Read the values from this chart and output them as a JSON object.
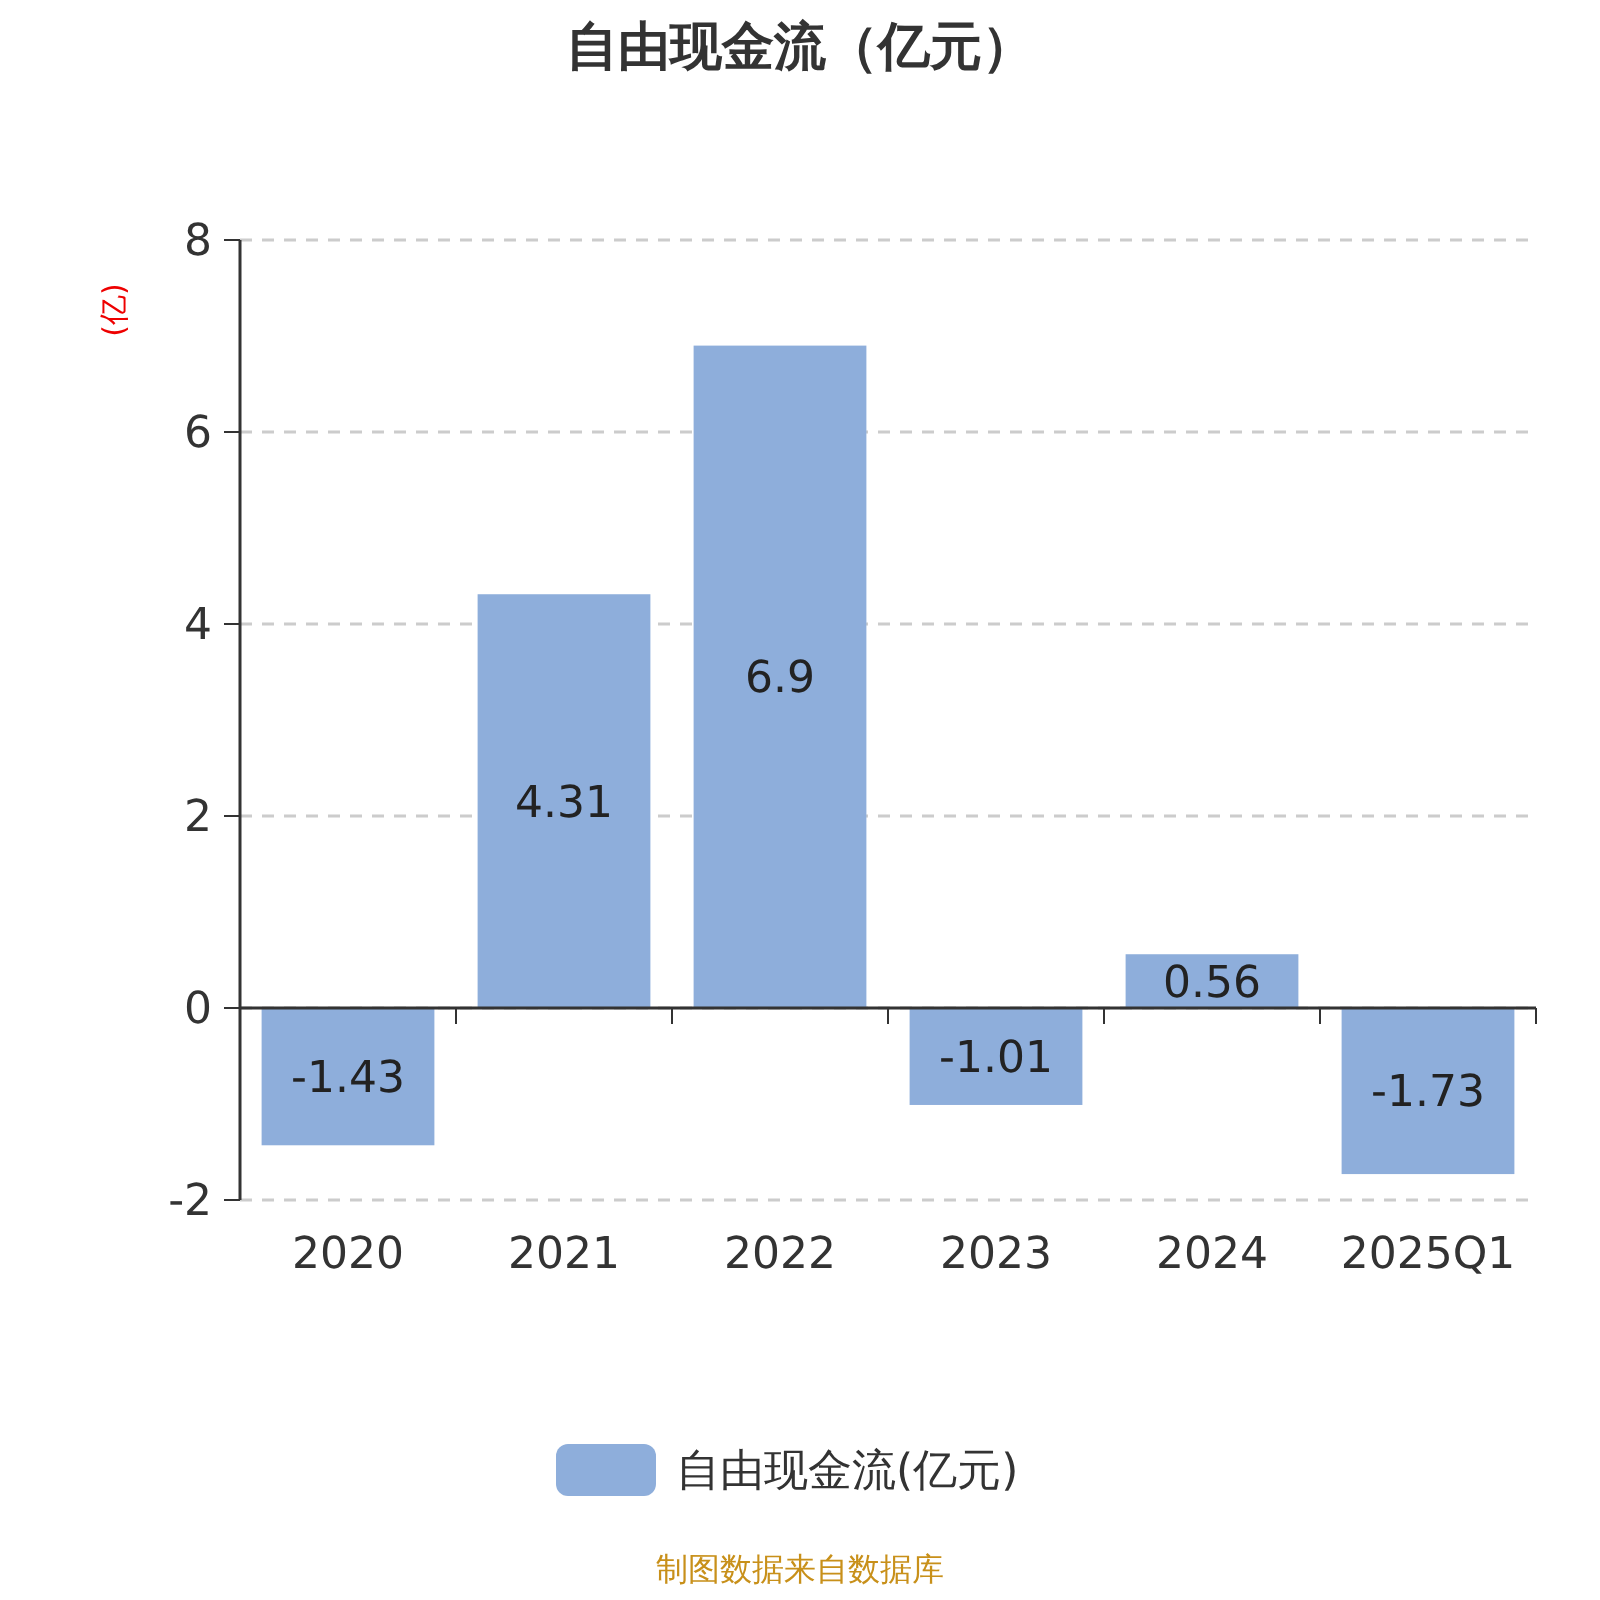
{
  "chart_data": {
    "type": "bar",
    "title": "自由现金流（亿元）",
    "ylabel": "(亿)",
    "categories": [
      "2020",
      "2021",
      "2022",
      "2023",
      "2024",
      "2025Q1"
    ],
    "series": [
      {
        "name": "自由现金流(亿元)",
        "color": "#8eaedb",
        "values": [
          -1.43,
          4.31,
          6.9,
          -1.01,
          0.56,
          -1.73
        ]
      }
    ],
    "ylim": [
      -2,
      8
    ],
    "yticks": [
      -2,
      0,
      2,
      4,
      6,
      8
    ],
    "grid": "y",
    "legend": "bottom",
    "data_labels": true,
    "annotations": [
      "制图数据来自数据库"
    ]
  }
}
